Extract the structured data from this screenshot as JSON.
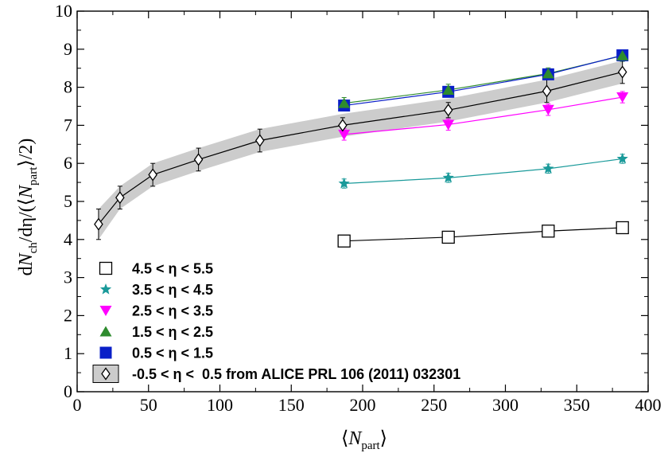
{
  "chart_data": {
    "type": "scatter",
    "xlim": [
      0,
      400
    ],
    "ylim": [
      0,
      10
    ],
    "xticks": [
      0,
      50,
      100,
      150,
      200,
      250,
      300,
      350,
      400
    ],
    "yticks": [
      0,
      1,
      2,
      3,
      4,
      5,
      6,
      7,
      8,
      9,
      10
    ],
    "grid": false,
    "legend_placement": "bottom-left",
    "series": [
      {
        "name": "4.5 < η < 5.5",
        "marker": "open-square",
        "color": "#000000",
        "line": true,
        "x": [
          187,
          260,
          330,
          382
        ],
        "y": [
          3.96,
          4.06,
          4.22,
          4.31
        ],
        "err": [
          0.06,
          0.06,
          0.06,
          0.06
        ]
      },
      {
        "name": "3.5 < η < 4.5",
        "marker": "star",
        "color": "#1a9a9a",
        "line": true,
        "x": [
          187,
          260,
          330,
          382
        ],
        "y": [
          5.47,
          5.62,
          5.86,
          6.12
        ],
        "err": [
          0.12,
          0.12,
          0.12,
          0.12
        ]
      },
      {
        "name": "2.5 < η < 3.5",
        "marker": "triangle-down",
        "color": "#ff00ff",
        "line": true,
        "x": [
          187,
          260,
          330,
          382
        ],
        "y": [
          6.76,
          7.02,
          7.41,
          7.74
        ],
        "err": [
          0.15,
          0.15,
          0.15,
          0.15
        ]
      },
      {
        "name": "1.5 < η < 2.5",
        "marker": "triangle-up",
        "color": "#2e8b2e",
        "line": true,
        "x": [
          187,
          260,
          330,
          382
        ],
        "y": [
          7.58,
          7.93,
          8.36,
          8.83
        ],
        "err": [
          0.15,
          0.15,
          0.15,
          0.15
        ]
      },
      {
        "name": "0.5 < η < 1.5",
        "marker": "square",
        "color": "#0a1fc8",
        "line": true,
        "x": [
          187,
          260,
          330,
          382
        ],
        "y": [
          7.52,
          7.88,
          8.34,
          8.84
        ],
        "err": [
          0.12,
          0.12,
          0.12,
          0.12
        ]
      },
      {
        "name": "-0.5 < η <  0.5 from ALICE PRL 106 (2011) 032301",
        "marker": "open-diamond",
        "color": "#000000",
        "band_color": "#cccccc",
        "line": true,
        "x": [
          15,
          30,
          53,
          85,
          128,
          186,
          260,
          329,
          382
        ],
        "y": [
          4.4,
          5.1,
          5.7,
          6.1,
          6.6,
          7.0,
          7.4,
          7.9,
          8.4
        ],
        "err": [
          0.4,
          0.3,
          0.3,
          0.3,
          0.3,
          0.2,
          0.2,
          0.3,
          0.3
        ],
        "band": [
          0.4,
          0.3,
          0.3,
          0.3,
          0.3,
          0.3,
          0.3,
          0.3,
          0.3
        ]
      }
    ],
    "legend_order": [
      0,
      1,
      2,
      3,
      4,
      5
    ]
  }
}
